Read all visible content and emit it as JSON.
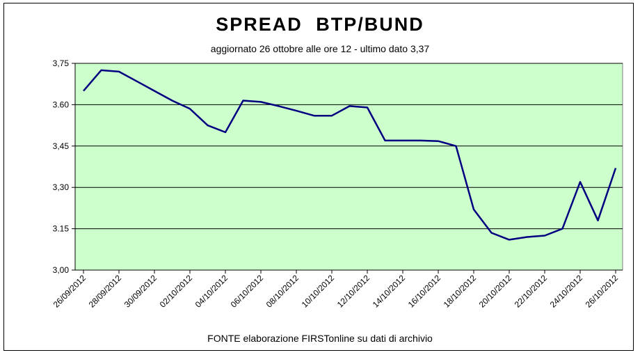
{
  "chart_data": {
    "type": "line",
    "title": "SPREAD  BTP/BUND",
    "subtitle": "aggiornato 26 ottobre alle ore 12 - ultimo dato 3,37",
    "source": "FONTE elaborazione FIRSTonline su dati di archivio",
    "xlabel": "",
    "ylabel": "",
    "ylim": [
      3.0,
      3.75
    ],
    "yticks": [
      3.0,
      3.15,
      3.3,
      3.45,
      3.6,
      3.75
    ],
    "ytick_labels": [
      "3,00",
      "3.15",
      "3,30",
      "3,45",
      "3.60",
      "3,75"
    ],
    "xtick_labels": [
      "26/09/2012",
      "28/09/2012",
      "30/09/2012",
      "02/10/2012",
      "04/10/2012",
      "06/10/2012",
      "08/10/2012",
      "10/10/2012",
      "12/10/2012",
      "14/10/2012",
      "16/10/2012",
      "18/10/2012",
      "20/10/2012",
      "22/10/2012",
      "24/10/2012",
      "26/10/2012"
    ],
    "x_start": "26/09/2012",
    "x_end": "26/10/2012",
    "grid": "horizontal",
    "plot_background": "#ccffcc",
    "line_color": "#000080",
    "series": [
      {
        "name": "",
        "points": [
          [
            "26/09/2012",
            3.65
          ],
          [
            "27/09/2012",
            3.725
          ],
          [
            "28/09/2012",
            3.72
          ],
          [
            "29/09/2012",
            3.685
          ],
          [
            "30/09/2012",
            3.65
          ],
          [
            "01/10/2012",
            3.615
          ],
          [
            "02/10/2012",
            3.585
          ],
          [
            "03/10/2012",
            3.525
          ],
          [
            "04/10/2012",
            3.5
          ],
          [
            "05/10/2012",
            3.615
          ],
          [
            "06/10/2012",
            3.61
          ],
          [
            "07/10/2012",
            3.595
          ],
          [
            "08/10/2012",
            3.578
          ],
          [
            "09/10/2012",
            3.56
          ],
          [
            "10/10/2012",
            3.56
          ],
          [
            "11/10/2012",
            3.595
          ],
          [
            "12/10/2012",
            3.59
          ],
          [
            "13/10/2012",
            3.47
          ],
          [
            "14/10/2012",
            3.47
          ],
          [
            "15/10/2012",
            3.47
          ],
          [
            "16/10/2012",
            3.468
          ],
          [
            "17/10/2012",
            3.45
          ],
          [
            "18/10/2012",
            3.22
          ],
          [
            "19/10/2012",
            3.135
          ],
          [
            "20/10/2012",
            3.11
          ],
          [
            "21/10/2012",
            3.12
          ],
          [
            "22/10/2012",
            3.125
          ],
          [
            "23/10/2012",
            3.15
          ],
          [
            "24/10/2012",
            3.32
          ],
          [
            "25/10/2012",
            3.18
          ],
          [
            "26/10/2012",
            3.37
          ]
        ]
      }
    ]
  }
}
